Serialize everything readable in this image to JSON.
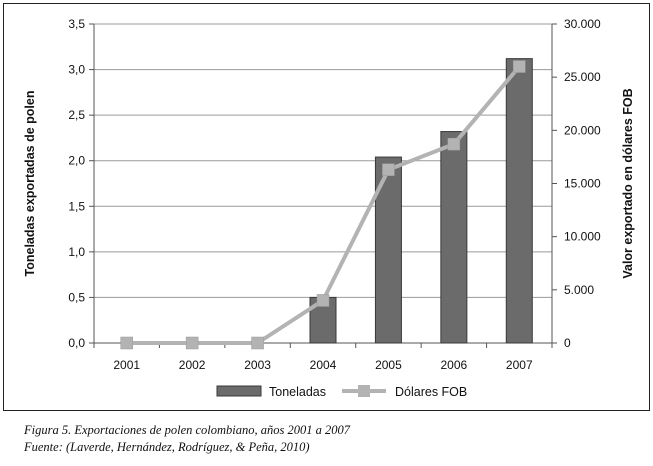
{
  "chart_data": {
    "type": "bar",
    "categories": [
      "2001",
      "2002",
      "2003",
      "2004",
      "2005",
      "2006",
      "2007"
    ],
    "series": [
      {
        "name": "Toneladas",
        "type": "bar",
        "axis": "left",
        "values": [
          0.0,
          0.0,
          0.0,
          0.5,
          2.04,
          2.32,
          3.12
        ],
        "color": "#6b6b6b"
      },
      {
        "name": "Dólares FOB",
        "type": "line",
        "axis": "right",
        "values": [
          0,
          0,
          0,
          4000,
          16300,
          18700,
          26000
        ],
        "color": "#b3b3b3"
      }
    ],
    "ylabel": "Toneladas exportadas de polen",
    "y2label": "Valor exportado en dólares FOB",
    "ylim": [
      0,
      3.5
    ],
    "y2lim": [
      0,
      30000
    ],
    "yticks": [
      "0,0",
      "0,5",
      "1,0",
      "1,5",
      "2,0",
      "2,5",
      "3,0",
      "3,5"
    ],
    "y2ticks": [
      "0",
      "5.000",
      "10.000",
      "15.000",
      "20.000",
      "25.000",
      "30.000"
    ],
    "grid": true,
    "legend": "bottom"
  },
  "caption": {
    "line1": "Figura 5. Exportaciones de polen colombiano, años 2001 a 2007",
    "line2": "Fuente: (Laverde, Hernández, Rodríguez, & Peña, 2010)"
  }
}
